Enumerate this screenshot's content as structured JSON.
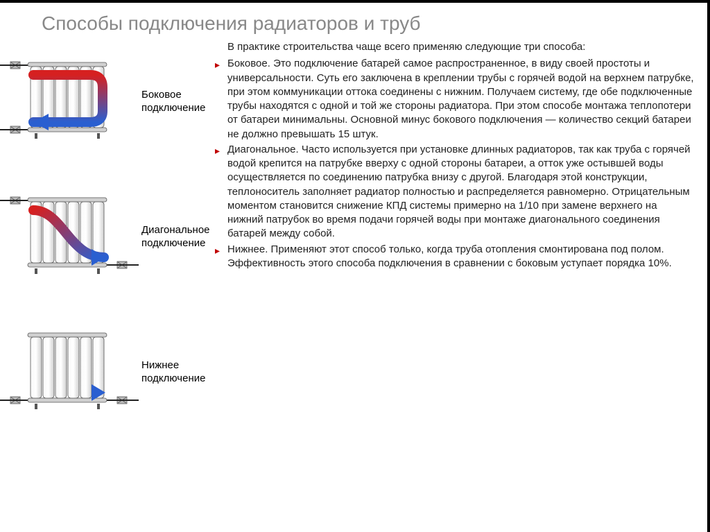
{
  "title": "Способы подключения радиаторов и труб",
  "intro": "В практике строительства чаще всего применяю следующие три способа:",
  "bullets": [
    "Боковое. Это подключение батарей самое распространенное, в виду своей простоты и универсальности. Суть его заключена в креплении трубы с горячей водой на верхнем патрубке, при этом коммуникации оттока соединены с нижним. Получаем систему, где обе подключенные трубы находятся с одной и той же стороны радиатора. При этом способе монтажа теплопотери от батареи минимальны. Основной минус бокового подключения — количество секций батареи не должно превышать 15 штук.",
    "Диагональное. Часто используется при установке длинных радиаторов, так как труба с горячей водой крепится на патрубке вверху с одной стороны батареи, а отток уже остывшей воды осуществляется по соединению патрубка внизу с другой. Благодаря этой конструкции, теплоноситель заполняет радиатор полностью и распределяется равномерно. Отрицательным моментом становится снижение КПД системы примерно на 1/10 при замене верхнего на нижний патрубок во время подачи горячей воды при монтаже диагонального соединения батарей между собой.",
    "Нижнее. Применяют этот способ только, когда труба отопления смонтирована под полом. Эффективность этого способа подключения в сравнении с боковым уступает порядка 10%."
  ],
  "diagrams": [
    {
      "label_l1": "Боковое",
      "label_l2": "подключение",
      "arrow": "side"
    },
    {
      "label_l1": "Диагональное",
      "label_l2": "подключение",
      "arrow": "diag"
    },
    {
      "label_l1": "Нижнее",
      "label_l2": "подключение",
      "arrow": "bottom"
    }
  ],
  "colors": {
    "hot_start": "#d62020",
    "hot_end": "#e05a3a",
    "cold_start": "#2a5fd0",
    "cold_end": "#4a7fe0",
    "radiator_light": "#f8f8f8",
    "radiator_shade": "#d0d0d0",
    "radiator_stroke": "#555555",
    "pipe": "#222222",
    "bullet": "#c00000",
    "title": "#888888",
    "text": "#222222"
  }
}
